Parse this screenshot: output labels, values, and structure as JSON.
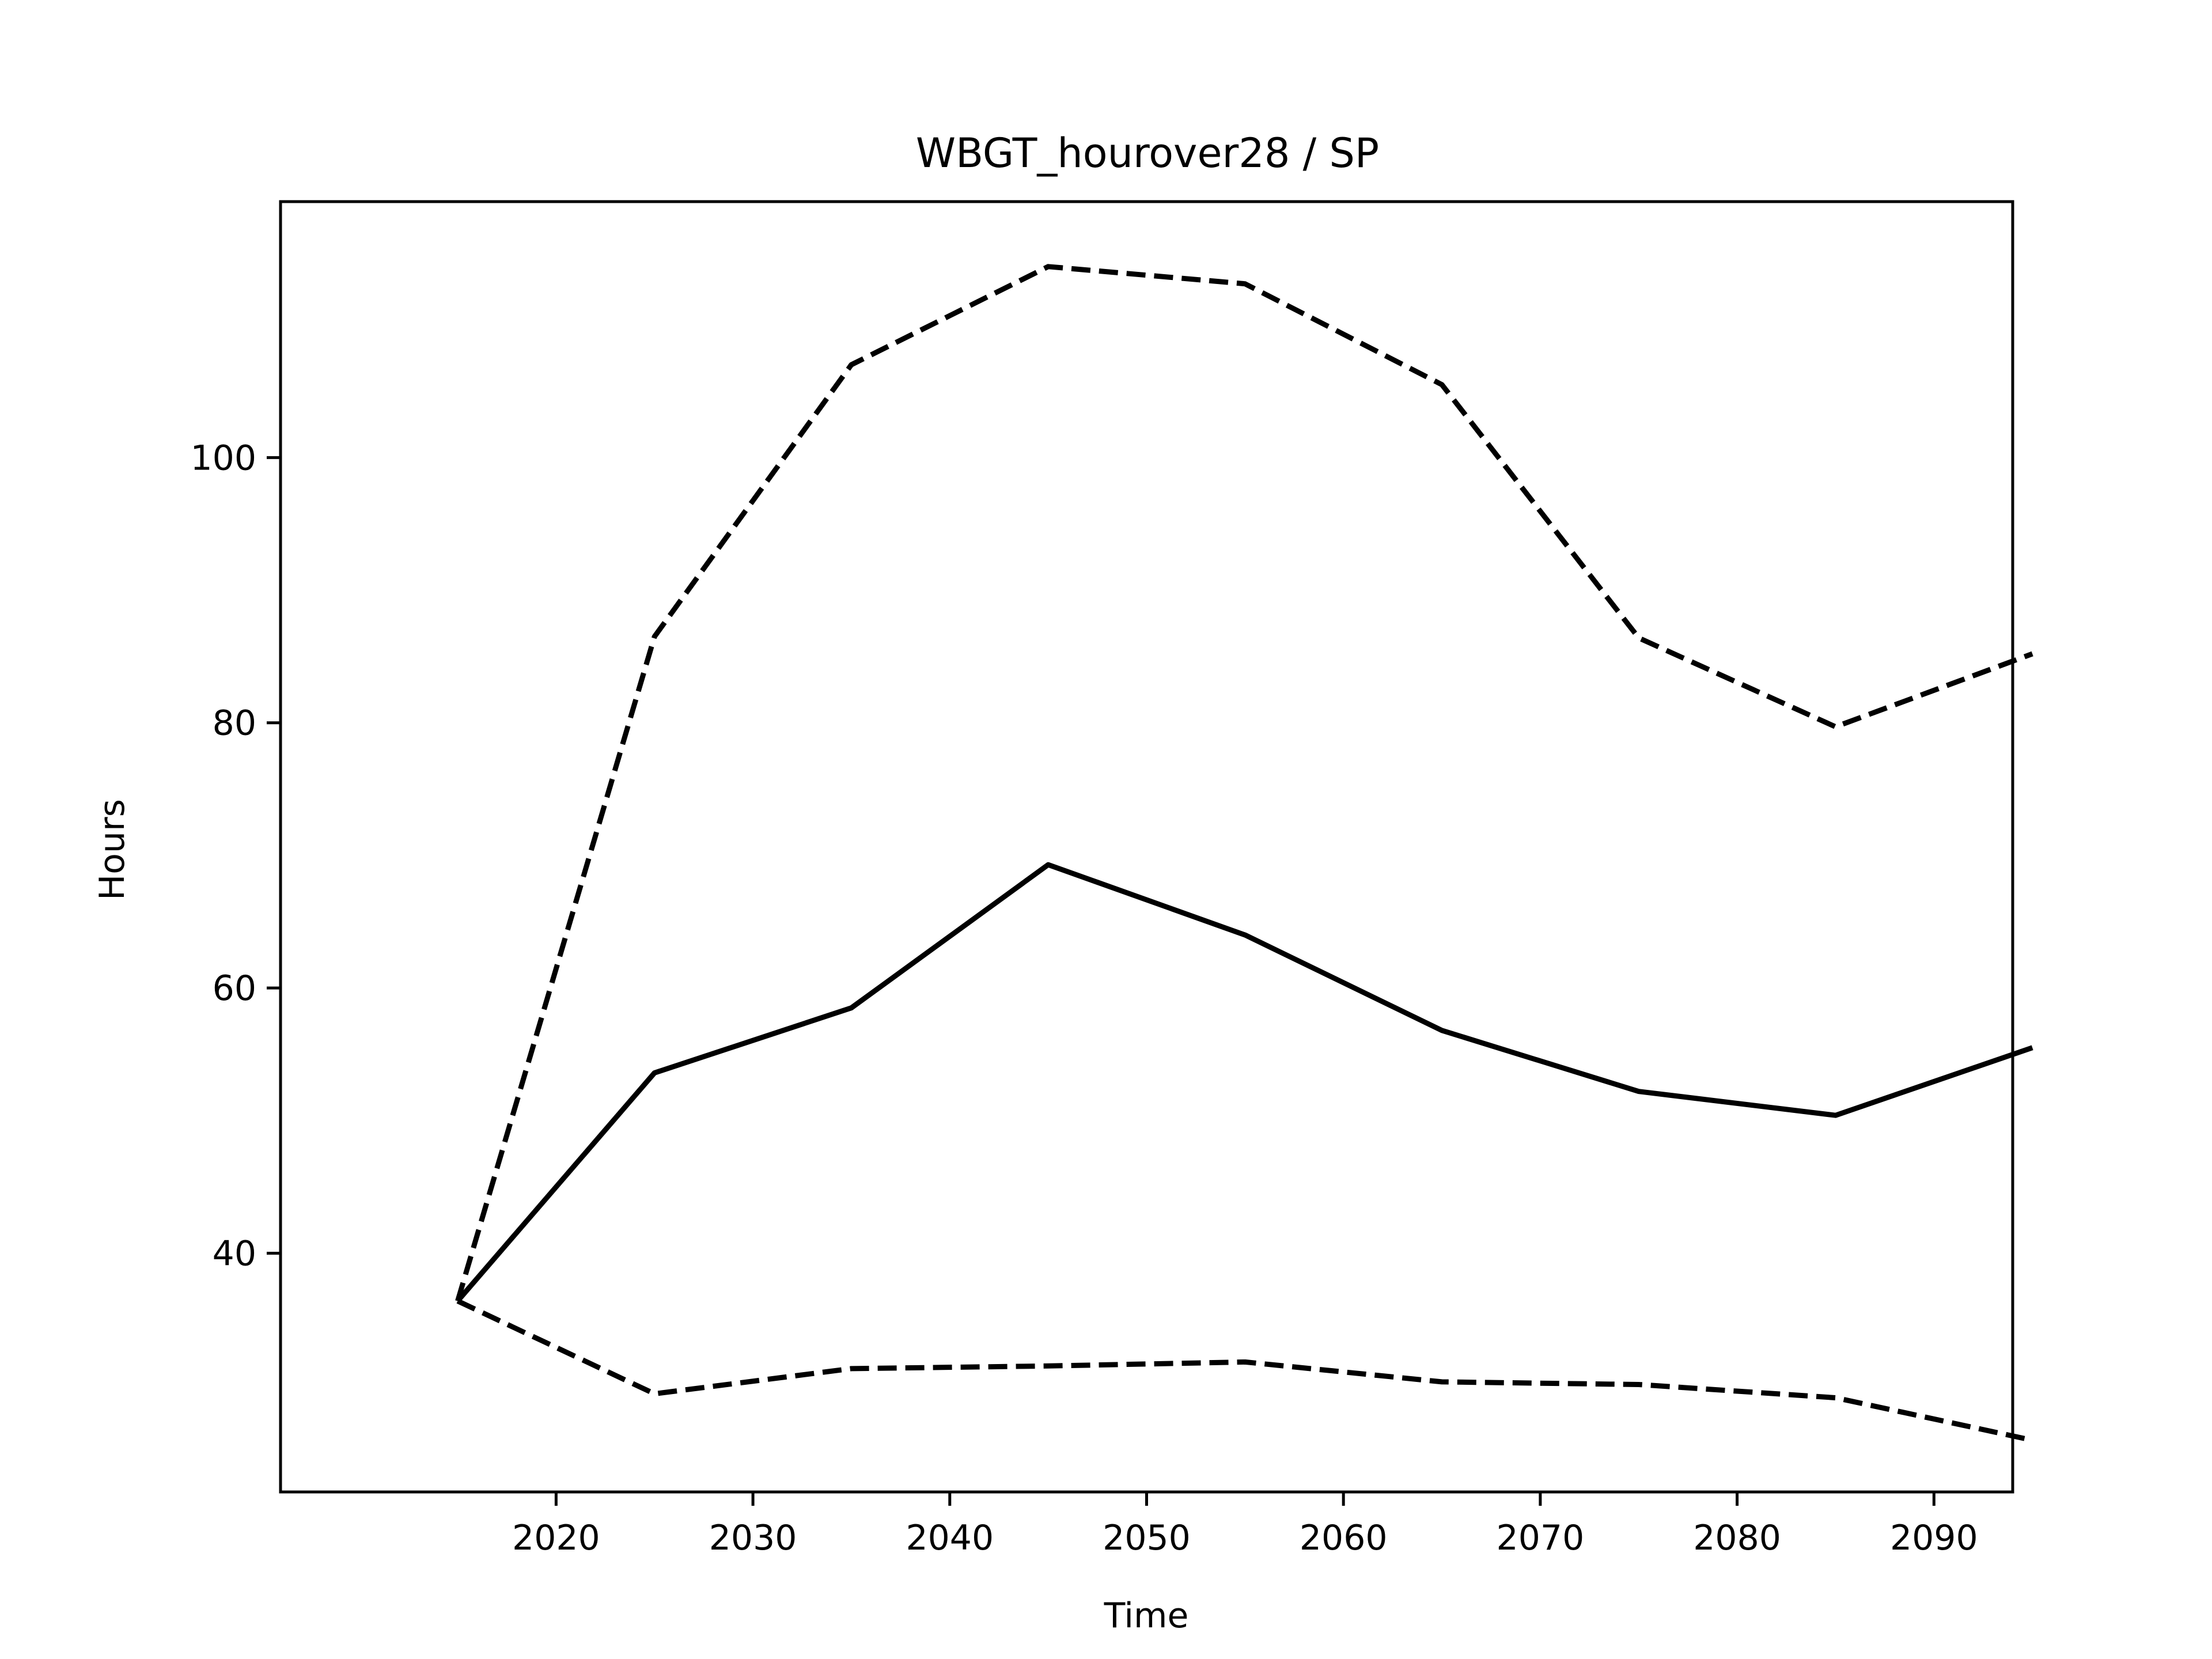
{
  "chart_data": {
    "type": "line",
    "title": "WBGT_hourover28 / SP",
    "xlabel": "Time",
    "ylabel": "Hours",
    "x": [
      2015,
      2025,
      2035,
      2045,
      2055,
      2065,
      2075,
      2085,
      2095
    ],
    "xlim": [
      2006,
      2094
    ],
    "ylim": [
      22,
      119.3
    ],
    "xticks": [
      2020,
      2030,
      2040,
      2050,
      2060,
      2070,
      2080,
      2090
    ],
    "yticks": [
      40,
      60,
      80,
      100
    ],
    "grid": false,
    "legend": "none",
    "series": [
      {
        "style": "solid",
        "values": [
          36.4,
          53.6,
          58.5,
          69.3,
          64.0,
          56.8,
          52.2,
          50.4,
          55.5
        ]
      },
      {
        "style": "dashed",
        "values": [
          36.4,
          86.5,
          107.0,
          114.4,
          113.1,
          105.5,
          86.4,
          79.7,
          85.2
        ]
      },
      {
        "style": "dashed",
        "values": [
          36.4,
          29.4,
          31.3,
          31.5,
          31.8,
          30.3,
          30.1,
          29.1,
          25.9
        ]
      }
    ],
    "line_color": "#000000"
  }
}
